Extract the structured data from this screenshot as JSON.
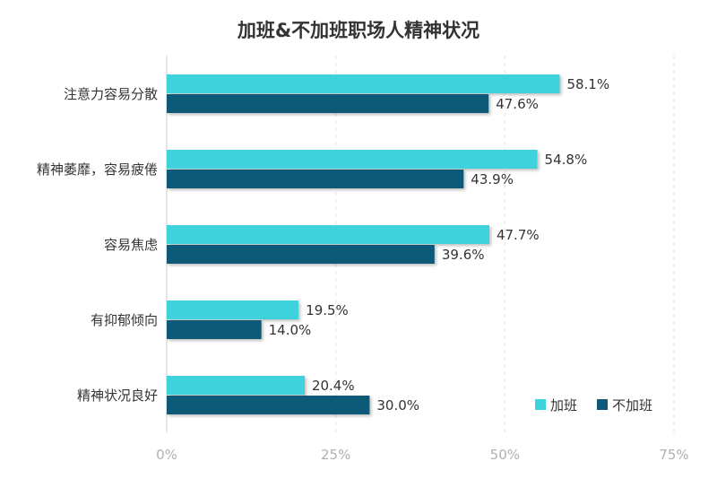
{
  "chart_data": {
    "type": "bar",
    "orientation": "horizontal",
    "title": "加班&不加班职场人精神状况",
    "categories": [
      "注意力容易分散",
      "精神萎靡，容易疲倦",
      "容易焦虑",
      "有抑郁倾向",
      "精神状况良好"
    ],
    "series": [
      {
        "name": "加班",
        "values": [
          58.1,
          54.8,
          47.7,
          19.5,
          20.4
        ],
        "color": "#3cd2dc"
      },
      {
        "name": "不加班",
        "values": [
          47.6,
          43.9,
          39.6,
          14.0,
          30.0
        ],
        "color": "#0d5a78"
      }
    ],
    "xlim": [
      0,
      75
    ],
    "xticks": [
      0,
      25,
      50,
      75
    ],
    "tick_labels": [
      "0%",
      "25%",
      "50%",
      "75%"
    ],
    "value_labels": [
      [
        "58.1%",
        "54.8%",
        "47.7%",
        "19.5%",
        "20.4%"
      ],
      [
        "47.6%",
        "43.9%",
        "39.6%",
        "14.0%",
        "30.0%"
      ]
    ],
    "grid": "vertical-dashed",
    "legend_position": "bottom-right"
  }
}
